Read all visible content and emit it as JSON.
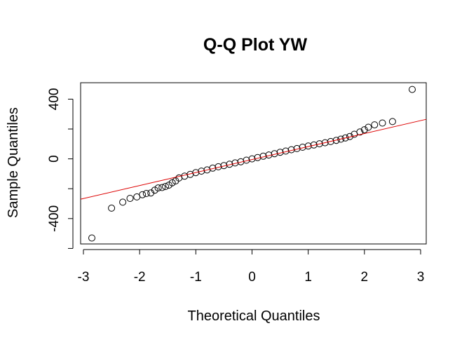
{
  "chart_data": {
    "type": "scatter",
    "title": "Q-Q Plot YW",
    "xlabel": "Theoretical Quantiles",
    "ylabel": "Sample Quantiles",
    "xlim": [
      -3.05,
      3.1
    ],
    "ylim": [
      -570,
      510
    ],
    "xticks": [
      -3,
      -2,
      -1,
      0,
      1,
      2,
      3
    ],
    "yticks": [
      -400,
      0,
      400
    ],
    "yticks_minor": [
      -600,
      -200,
      200
    ],
    "grid": false,
    "colors": {
      "points": "#000000",
      "line": "#dd0000",
      "frame": "#000000"
    },
    "reference_line": {
      "x": [
        -3.05,
        3.1
      ],
      "y": [
        -270,
        265
      ]
    },
    "points": [
      [
        -2.85,
        -530
      ],
      [
        -2.5,
        -330
      ],
      [
        -2.3,
        -290
      ],
      [
        -2.17,
        -265
      ],
      [
        -2.05,
        -255
      ],
      [
        -1.95,
        -240
      ],
      [
        -1.88,
        -232
      ],
      [
        -1.8,
        -228
      ],
      [
        -1.73,
        -210
      ],
      [
        -1.67,
        -195
      ],
      [
        -1.6,
        -192
      ],
      [
        -1.54,
        -185
      ],
      [
        -1.48,
        -176
      ],
      [
        -1.42,
        -160
      ],
      [
        -1.36,
        -148
      ],
      [
        -1.3,
        -128
      ],
      [
        -1.2,
        -116
      ],
      [
        -1.1,
        -104
      ],
      [
        -1.0,
        -92
      ],
      [
        -0.9,
        -82
      ],
      [
        -0.8,
        -74
      ],
      [
        -0.7,
        -62
      ],
      [
        -0.6,
        -53
      ],
      [
        -0.5,
        -45
      ],
      [
        -0.4,
        -36
      ],
      [
        -0.3,
        -27
      ],
      [
        -0.2,
        -19
      ],
      [
        -0.1,
        -9
      ],
      [
        0.0,
        0
      ],
      [
        0.1,
        9
      ],
      [
        0.2,
        18
      ],
      [
        0.3,
        26
      ],
      [
        0.4,
        35
      ],
      [
        0.5,
        44
      ],
      [
        0.6,
        52
      ],
      [
        0.7,
        61
      ],
      [
        0.8,
        69
      ],
      [
        0.9,
        78
      ],
      [
        1.0,
        86
      ],
      [
        1.1,
        93
      ],
      [
        1.2,
        101
      ],
      [
        1.3,
        108
      ],
      [
        1.4,
        116
      ],
      [
        1.5,
        124
      ],
      [
        1.58,
        132
      ],
      [
        1.66,
        140
      ],
      [
        1.74,
        150
      ],
      [
        1.82,
        165
      ],
      [
        1.92,
        180
      ],
      [
        2.0,
        195
      ],
      [
        2.07,
        212
      ],
      [
        2.18,
        228
      ],
      [
        2.32,
        240
      ],
      [
        2.5,
        250
      ],
      [
        2.85,
        465
      ]
    ]
  }
}
